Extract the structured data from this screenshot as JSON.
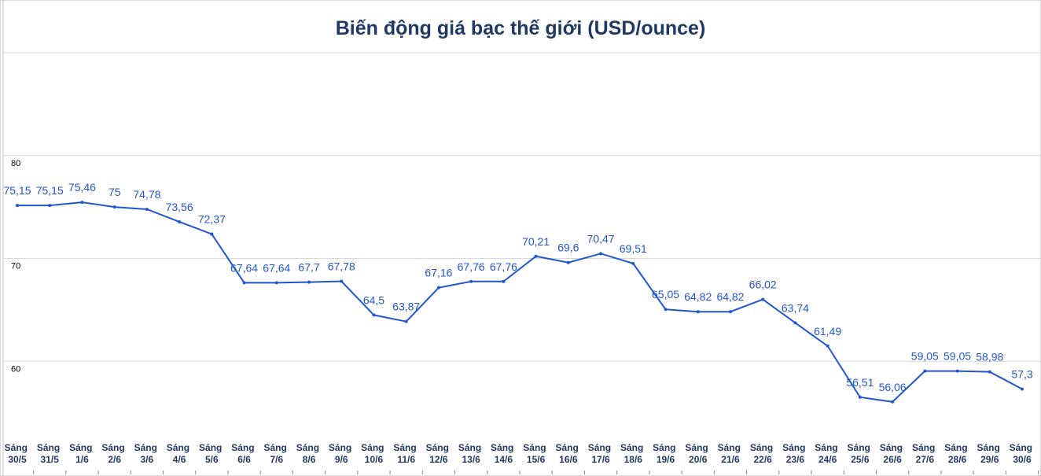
{
  "chart_data": {
    "type": "line",
    "title": "Biến động giá bạc thế giới (USD/ounce)",
    "categories": [
      "Sáng 30/5",
      "Sáng 31/5",
      "Sáng 1/6",
      "Sáng 2/6",
      "Sáng 3/6",
      "Sáng 4/6",
      "Sáng 5/6",
      "Sáng 6/6",
      "Sáng 7/6",
      "Sáng 8/6",
      "Sáng 9/6",
      "Sáng 10/6",
      "Sáng 11/6",
      "Sáng 12/6",
      "Sáng 13/6",
      "Sáng 14/6",
      "Sáng 15/6",
      "Sáng 16/6",
      "Sáng 17/6",
      "Sáng 18/6",
      "Sáng 19/6",
      "Sáng 20/6",
      "Sáng 21/6",
      "Sáng 22/6",
      "Sáng 23/6",
      "Sáng 24/6",
      "Sáng 25/6",
      "Sáng 26/6",
      "Sáng 27/6",
      "Sáng 28/6",
      "Sáng 29/6",
      "Sáng 30/6"
    ],
    "values": [
      75.15,
      75.15,
      75.46,
      75,
      74.78,
      73.56,
      72.37,
      67.64,
      67.64,
      67.7,
      67.78,
      64.5,
      63.87,
      67.16,
      67.76,
      67.76,
      70.21,
      69.6,
      70.47,
      69.51,
      65.05,
      64.82,
      64.82,
      66.02,
      63.74,
      61.49,
      56.51,
      56.06,
      59.05,
      59.05,
      58.98,
      57.3
    ],
    "value_labels": [
      "75,15",
      "75,15",
      "75,46",
      "75",
      "74,78",
      "73,56",
      "72,37",
      "67,64",
      "67,64",
      "67,7",
      "67,78",
      "64,5",
      "63,87",
      "67,16",
      "67,76",
      "67,76",
      "70,21",
      "69,6",
      "70,47",
      "69,51",
      "65,05",
      "64,82",
      "64,82",
      "66,02",
      "63,74",
      "61,49",
      "56,51",
      "56,06",
      "59,05",
      "59,05",
      "58,98",
      "57,3"
    ],
    "color": "#2156d1",
    "ylim": [
      50,
      90
    ],
    "yticks": [
      60,
      70,
      80
    ],
    "grid": true
  }
}
